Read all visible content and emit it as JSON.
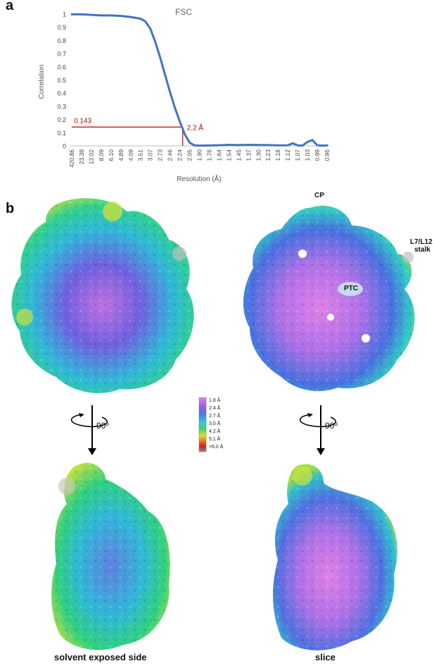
{
  "panels": {
    "a": "a",
    "b": "b"
  },
  "chart_data": {
    "type": "line",
    "title": "FSC",
    "xlabel": "Resolution (Å)",
    "ylabel": "Correlation",
    "ylim": [
      0,
      1
    ],
    "yticks": [
      "0",
      "0.1",
      "0.2",
      "0.3",
      "0.4",
      "0.5",
      "0.6",
      "0.7",
      "0.8",
      "0.9",
      "1"
    ],
    "xticks": [
      "420.86",
      "23.38",
      "12.02",
      "8.09",
      "6.10",
      "4.89",
      "4.09",
      "3.51",
      "3.07",
      "2.73",
      "2.46",
      "2.24",
      "2.05",
      "1.90",
      "1.76",
      "1.64",
      "1.54",
      "1.45",
      "1.37",
      "1.30",
      "1.23",
      "1.18",
      "1.12",
      "1.07",
      "1.03",
      "0.99",
      "0.95"
    ],
    "series": [
      {
        "name": "",
        "color": "#4472c4",
        "x": [
          0,
          1,
          2,
          3,
          4,
          5,
          6,
          7,
          7.5,
          8,
          8.5,
          9,
          9.5,
          10,
          10.5,
          11,
          11.5,
          12,
          12.5,
          13,
          14,
          15,
          16,
          17,
          18,
          19,
          20,
          21,
          22,
          22.5,
          23,
          23.5,
          24,
          24.5,
          25,
          25.5,
          26
        ],
        "y": [
          0.999,
          0.998,
          0.994,
          0.99,
          0.99,
          0.986,
          0.978,
          0.965,
          0.945,
          0.89,
          0.79,
          0.67,
          0.54,
          0.41,
          0.29,
          0.185,
          0.09,
          0.025,
          0.004,
          0.002,
          0.003,
          0.005,
          0.008,
          0.006,
          0.008,
          0.007,
          0.006,
          0.004,
          0.005,
          0.02,
          0.004,
          0.002,
          0.03,
          0.045,
          0.005,
          0.002,
          0.003
        ]
      }
    ],
    "threshold": {
      "value": 0.143,
      "label": "0.143",
      "resolution_label": "2.2 Å",
      "x": 11.3,
      "color": "#c00000"
    }
  },
  "maps": {
    "annotations": {
      "cp": "CP",
      "l7": "L7/L12",
      "stalk": "stalk",
      "ptc": "PTC"
    },
    "rotation_label": "90º",
    "captions": {
      "left": "solvent exposed side",
      "right": "slice"
    }
  },
  "resolution_legend": {
    "labels": [
      "1.8 Å",
      "2.4 Å",
      "2.7 Å",
      "3.0 Å",
      "4.2 Å",
      "5.1 Å",
      ">6.0 Å"
    ],
    "colors": [
      "#d98ae6",
      "#a060e0",
      "#5070e8",
      "#30c8d8",
      "#40d070",
      "#d8e030",
      "#e08020",
      "#d02020",
      "#888888"
    ]
  },
  "colors": {
    "map_palette": [
      "#e080e8",
      "#a060e8",
      "#4060e0",
      "#20c0d0",
      "#30d880",
      "#d0e040"
    ]
  }
}
